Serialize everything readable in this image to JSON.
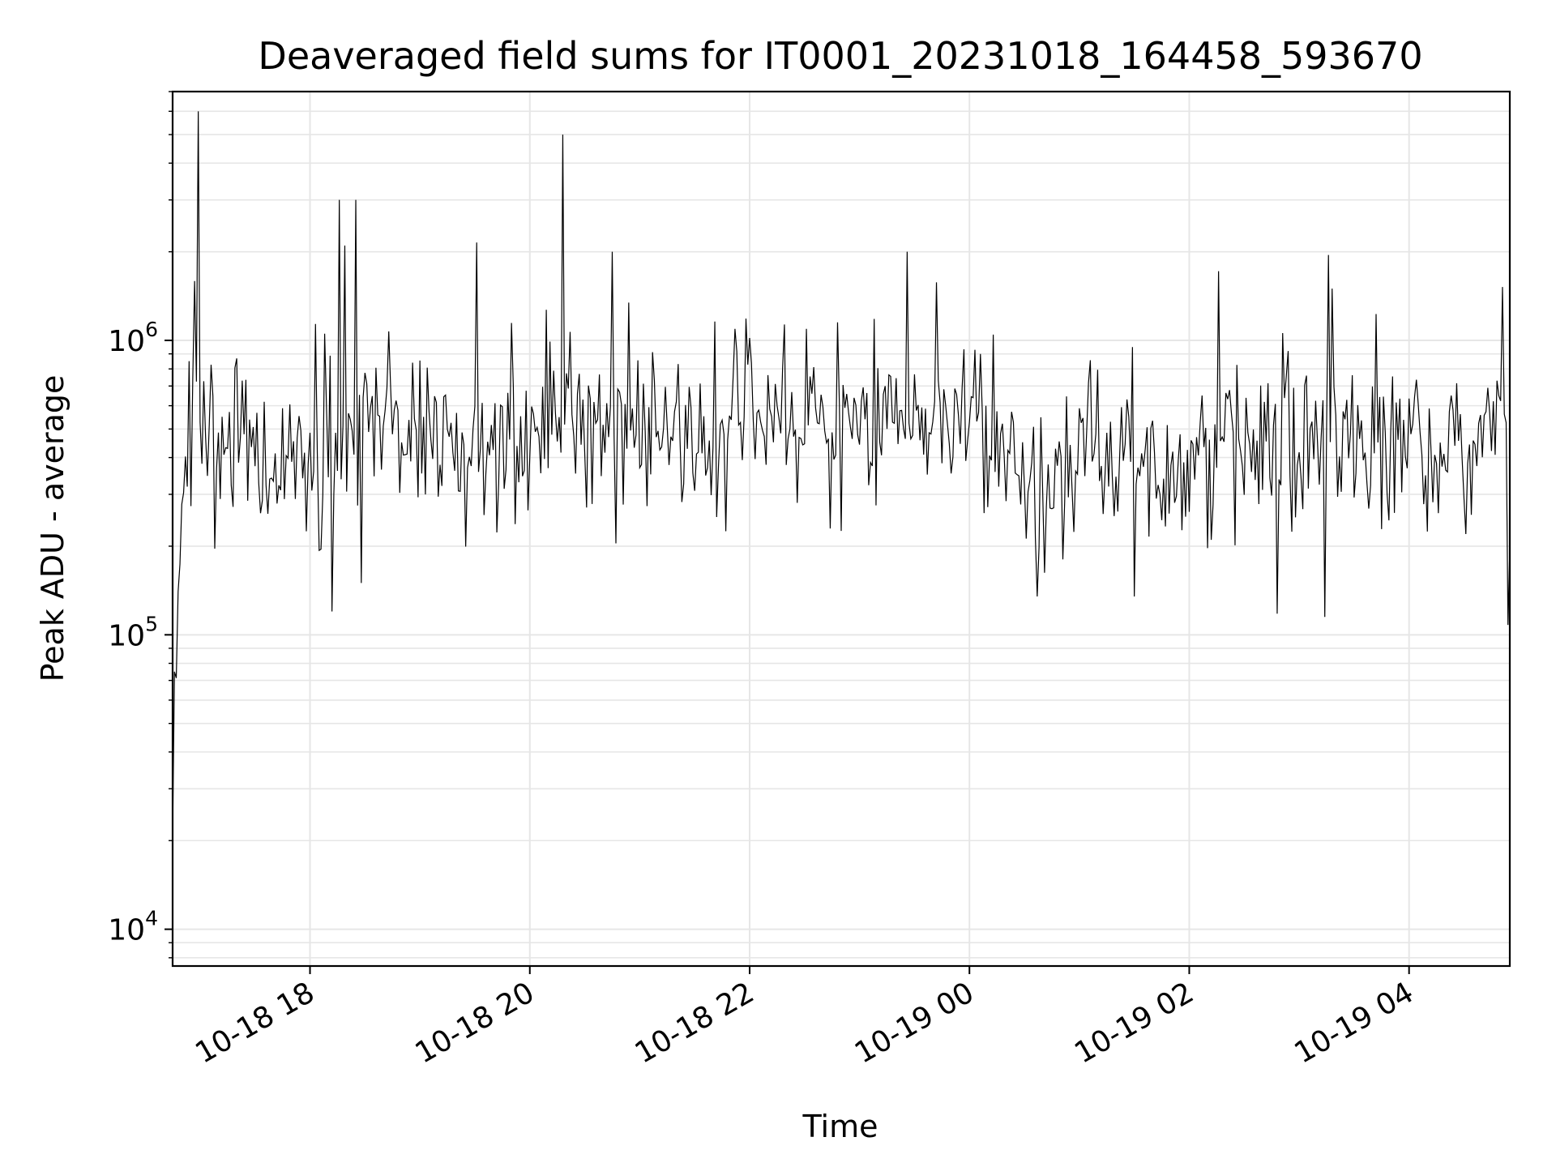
{
  "chart_data": {
    "type": "line",
    "title": "Deaveraged field sums for IT0001_20231018_164458_593670",
    "xlabel": "Time",
    "ylabel": "Peak ADU - average",
    "x_axis": {
      "kind": "datetime",
      "range": [
        "2023-10-18 16:45",
        "2023-10-19 04:55"
      ],
      "ticks": [
        {
          "value": "2023-10-18 18:00",
          "label": "10-18 18"
        },
        {
          "value": "2023-10-18 20:00",
          "label": "10-18 20"
        },
        {
          "value": "2023-10-18 22:00",
          "label": "10-18 22"
        },
        {
          "value": "2023-10-19 00:00",
          "label": "10-19 00"
        },
        {
          "value": "2023-10-19 02:00",
          "label": "10-19 02"
        },
        {
          "value": "2023-10-19 04:00",
          "label": "10-19 04"
        }
      ],
      "tick_label_rotation": "30 degrees"
    },
    "y_axis": {
      "scale": "log",
      "range": [
        7500,
        7000000
      ],
      "ticks": [
        {
          "value": 10000,
          "base": "10",
          "exponent": "4"
        },
        {
          "value": 100000,
          "base": "10",
          "exponent": "5"
        },
        {
          "value": 1000000,
          "base": "10",
          "exponent": "6"
        }
      ]
    },
    "grid": "on (major and minor)",
    "legend": "none",
    "line_color": "#000000",
    "grid_color": "#e6e6e6",
    "series": [
      {
        "sampling": "approximately one point per minute; values estimated from the plot",
        "start": "2023-10-18 16:45",
        "end": "2023-10-19 04:55",
        "baseline": [
          {
            "time": "2023-10-18 16:45",
            "value": 21000
          },
          {
            "time": "2023-10-18 16:46",
            "value": 70000
          },
          {
            "time": "2023-10-18 16:48",
            "value": 120000
          },
          {
            "time": "2023-10-18 16:50",
            "value": 300000
          },
          {
            "time": "2023-10-18 16:55",
            "value": 500000
          },
          {
            "time": "2023-10-18 17:10",
            "value": 480000
          },
          {
            "time": "2023-10-18 17:30",
            "value": 420000
          },
          {
            "time": "2023-10-18 18:00",
            "value": 400000
          },
          {
            "time": "2023-10-18 18:30",
            "value": 480000
          },
          {
            "time": "2023-10-18 19:00",
            "value": 430000
          },
          {
            "time": "2023-10-18 19:30",
            "value": 470000
          },
          {
            "time": "2023-10-18 20:00",
            "value": 500000
          },
          {
            "time": "2023-10-18 20:30",
            "value": 540000
          },
          {
            "time": "2023-10-18 21:00",
            "value": 520000
          },
          {
            "time": "2023-10-18 21:30",
            "value": 480000
          },
          {
            "time": "2023-10-18 22:00",
            "value": 560000
          },
          {
            "time": "2023-10-18 22:30",
            "value": 520000
          },
          {
            "time": "2023-10-18 23:00",
            "value": 520000
          },
          {
            "time": "2023-10-18 23:30",
            "value": 600000
          },
          {
            "time": "2023-10-19 00:00",
            "value": 560000
          },
          {
            "time": "2023-10-19 00:30",
            "value": 360000
          },
          {
            "time": "2023-10-19 00:45",
            "value": 300000
          },
          {
            "time": "2023-10-19 01:00",
            "value": 500000
          },
          {
            "time": "2023-10-19 01:30",
            "value": 420000
          },
          {
            "time": "2023-10-19 01:45",
            "value": 320000
          },
          {
            "time": "2023-10-19 02:00",
            "value": 360000
          },
          {
            "time": "2023-10-19 02:30",
            "value": 520000
          },
          {
            "time": "2023-10-19 02:50",
            "value": 380000
          },
          {
            "time": "2023-10-19 03:15",
            "value": 470000
          },
          {
            "time": "2023-10-19 03:45",
            "value": 470000
          },
          {
            "time": "2023-10-19 04:15",
            "value": 430000
          },
          {
            "time": "2023-10-19 04:30",
            "value": 380000
          },
          {
            "time": "2023-10-19 04:50",
            "value": 700000
          },
          {
            "time": "2023-10-19 04:55",
            "value": 350000
          }
        ],
        "spikes": [
          {
            "time": "2023-10-18 16:59",
            "value": 6000000
          },
          {
            "time": "2023-10-18 18:16",
            "value": 3000000
          },
          {
            "time": "2023-10-18 18:19",
            "value": 2100000
          },
          {
            "time": "2023-10-18 18:25",
            "value": 3000000
          },
          {
            "time": "2023-10-18 19:31",
            "value": 2150000
          },
          {
            "time": "2023-10-18 20:18",
            "value": 5000000
          },
          {
            "time": "2023-10-18 20:45",
            "value": 2000000
          },
          {
            "time": "2023-10-18 23:26",
            "value": 2000000
          },
          {
            "time": "2023-10-19 03:16",
            "value": 1950000
          }
        ],
        "dips": [
          {
            "time": "2023-10-18 18:12",
            "value": 120000
          },
          {
            "time": "2023-10-18 18:28",
            "value": 150000
          },
          {
            "time": "2023-10-19 00:37",
            "value": 135000
          },
          {
            "time": "2023-10-19 01:30",
            "value": 135000
          },
          {
            "time": "2023-10-19 02:48",
            "value": 118000
          },
          {
            "time": "2023-10-19 03:14",
            "value": 115000
          },
          {
            "time": "2023-10-19 04:54",
            "value": 108000
          }
        ],
        "noise": "log-normal scatter around the baseline; typical excursions between about 180000 and 1500000"
      }
    ]
  }
}
